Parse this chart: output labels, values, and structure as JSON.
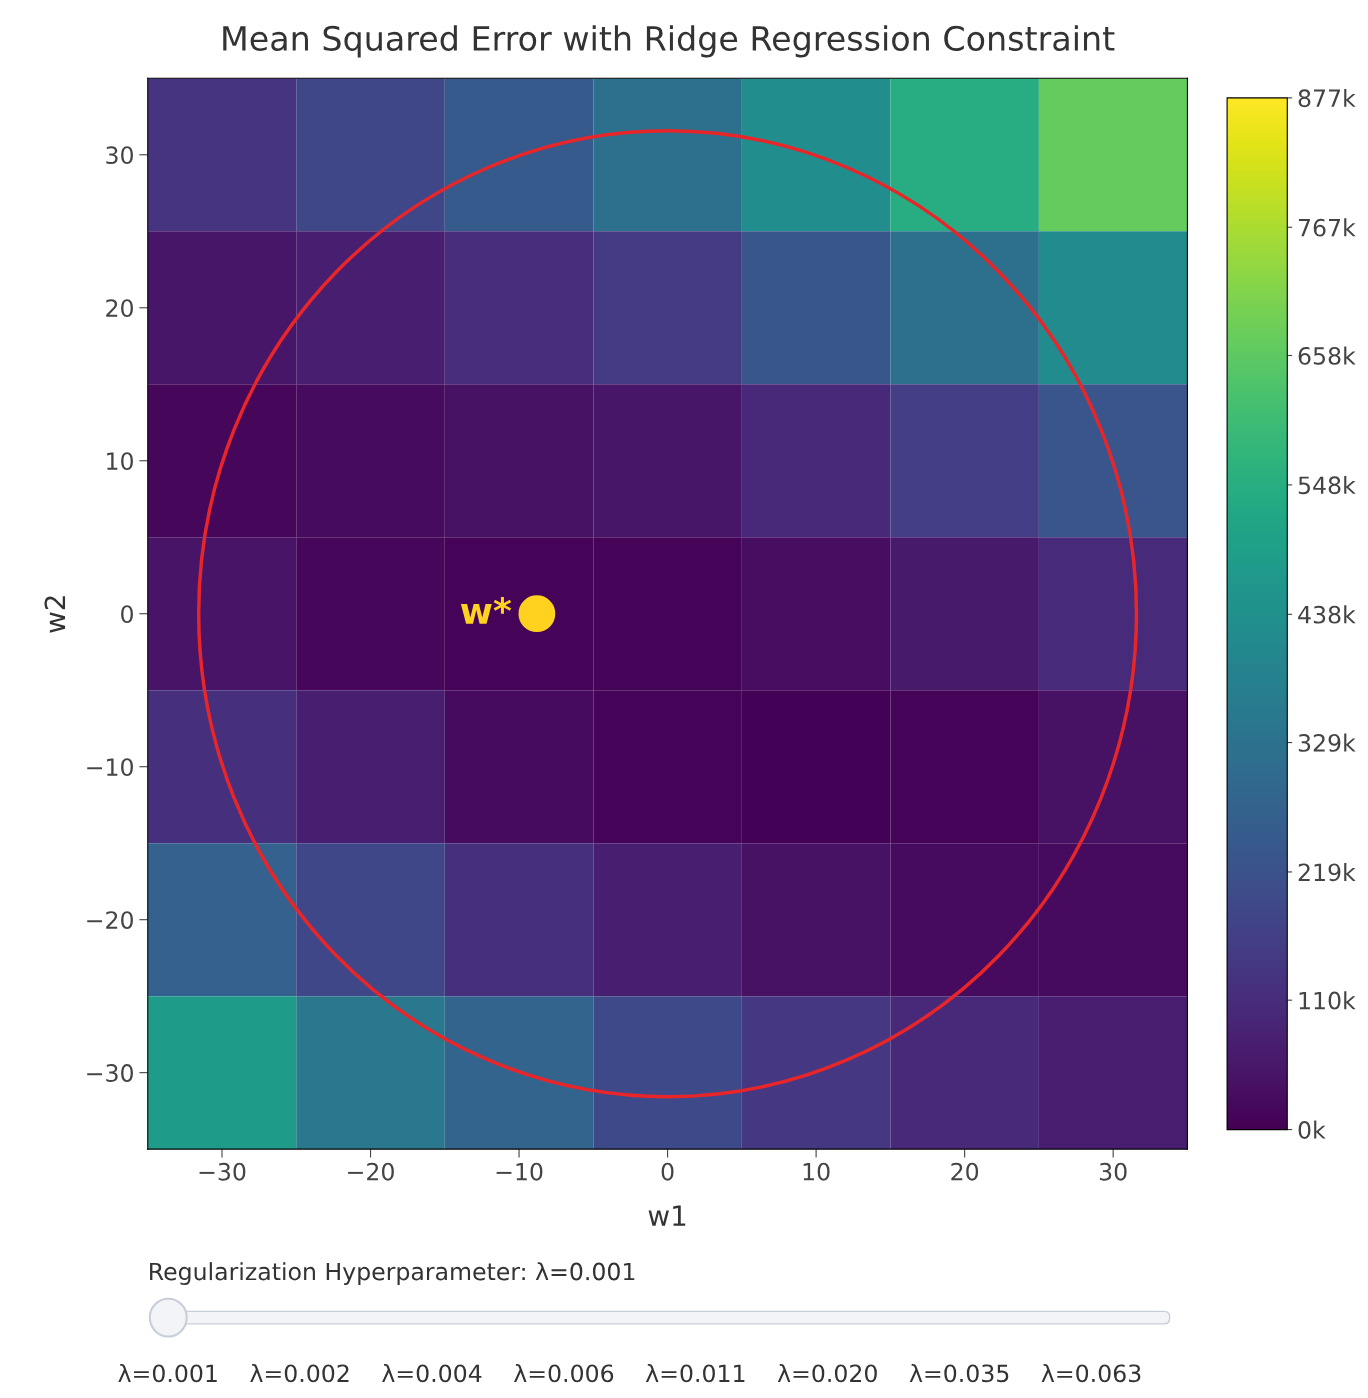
{
  "chart_data": {
    "type": "heatmap",
    "title": "Mean Squared Error with Ridge Regression Constraint",
    "xlabel": "w1",
    "ylabel": "w2",
    "x": [
      -30,
      -20,
      -10,
      0,
      10,
      20,
      30
    ],
    "y": [
      30,
      20,
      10,
      0,
      -10,
      -20,
      -30
    ],
    "cells": [
      [
        132,
        185,
        245,
        320,
        430,
        545,
        670
      ],
      [
        50,
        75,
        110,
        150,
        235,
        320,
        420
      ],
      [
        15,
        25,
        40,
        50,
        100,
        160,
        230
      ],
      [
        45,
        15,
        8,
        10,
        30,
        60,
        105
      ],
      [
        120,
        75,
        25,
        8,
        5,
        10,
        40
      ],
      [
        270,
        185,
        120,
        75,
        40,
        25,
        25
      ],
      [
        480,
        350,
        280,
        195,
        140,
        100,
        70
      ]
    ],
    "clim": [
      0,
      877
    ],
    "cticks": [
      {
        "value": 0,
        "label": "0k"
      },
      {
        "value": 110,
        "label": "110k"
      },
      {
        "value": 219,
        "label": "219k"
      },
      {
        "value": 329,
        "label": "329k"
      },
      {
        "value": 438,
        "label": "438k"
      },
      {
        "value": 548,
        "label": "548k"
      },
      {
        "value": 658,
        "label": "658k"
      },
      {
        "value": 767,
        "label": "767k"
      },
      {
        "value": 877,
        "label": "877k"
      }
    ],
    "xlim": [
      -35,
      35
    ],
    "ylim": [
      -35,
      35
    ],
    "xticks": [
      {
        "value": -30,
        "label": "−30"
      },
      {
        "value": -20,
        "label": "−20"
      },
      {
        "value": -10,
        "label": "−10"
      },
      0,
      10,
      20,
      30
    ],
    "yticks": [
      {
        "value": -30,
        "label": "−30"
      },
      {
        "value": -20,
        "label": "−20"
      },
      {
        "value": -10,
        "label": "−10"
      },
      0,
      10,
      20,
      30
    ],
    "series": [
      {
        "type": "scatter",
        "color": "#ffd21f",
        "x": [
          -8.8
        ],
        "values": [
          0
        ]
      }
    ],
    "annotations": [
      {
        "text": "w*",
        "x": -8.8,
        "y": 0
      },
      "Regularization Hyperparameter: λ=0.001",
      "λ=0.001",
      "λ=0.002",
      "λ=0.004",
      "λ=0.006",
      "λ=0.011",
      "λ=0.020",
      "λ=0.035",
      "λ=0.063"
    ],
    "grid": false,
    "legend": false
  }
}
